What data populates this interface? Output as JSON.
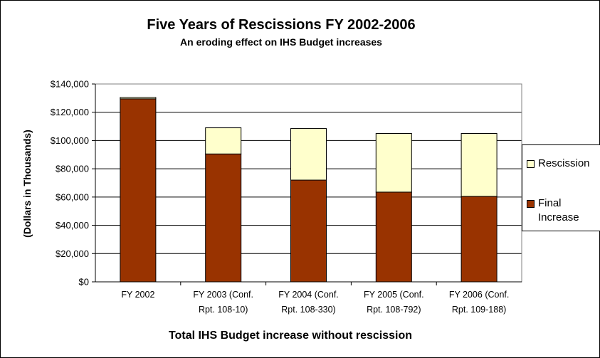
{
  "chart_data": {
    "type": "bar",
    "stacked": true,
    "title": "Five Years of Rescissions FY 2002-2006",
    "subtitle": "An eroding effect on IHS Budget increases",
    "xlabel": "Total IHS Budget increase without rescission",
    "ylabel": "(Dollars in Thousands)",
    "ylim": [
      0,
      140000
    ],
    "yticks": [
      "$0",
      "$20,000",
      "$40,000",
      "$60,000",
      "$80,000",
      "$100,000",
      "$120,000",
      "$140,000"
    ],
    "categories": [
      [
        "FY 2002",
        ""
      ],
      [
        "FY 2003 (Conf.",
        "Rpt. 108-10)"
      ],
      [
        "FY 2004 (Conf.",
        "Rpt. 108-330)"
      ],
      [
        "FY 2005  (Conf.",
        "Rpt. 108-792)"
      ],
      [
        "FY 2006 (Conf.",
        "Rpt. 109-188)"
      ]
    ],
    "series": [
      {
        "name": "Final Increase",
        "color": "#993300",
        "values": [
          129500,
          90500,
          72000,
          63500,
          60500
        ]
      },
      {
        "name": "Rescission",
        "color": "#FFFFCC",
        "values": [
          1000,
          18500,
          36500,
          41500,
          44500
        ]
      }
    ],
    "grid": true,
    "legend_position": "right"
  },
  "legend": {
    "rescission": "Rescission",
    "final_increase": "Final\nIncrease"
  }
}
